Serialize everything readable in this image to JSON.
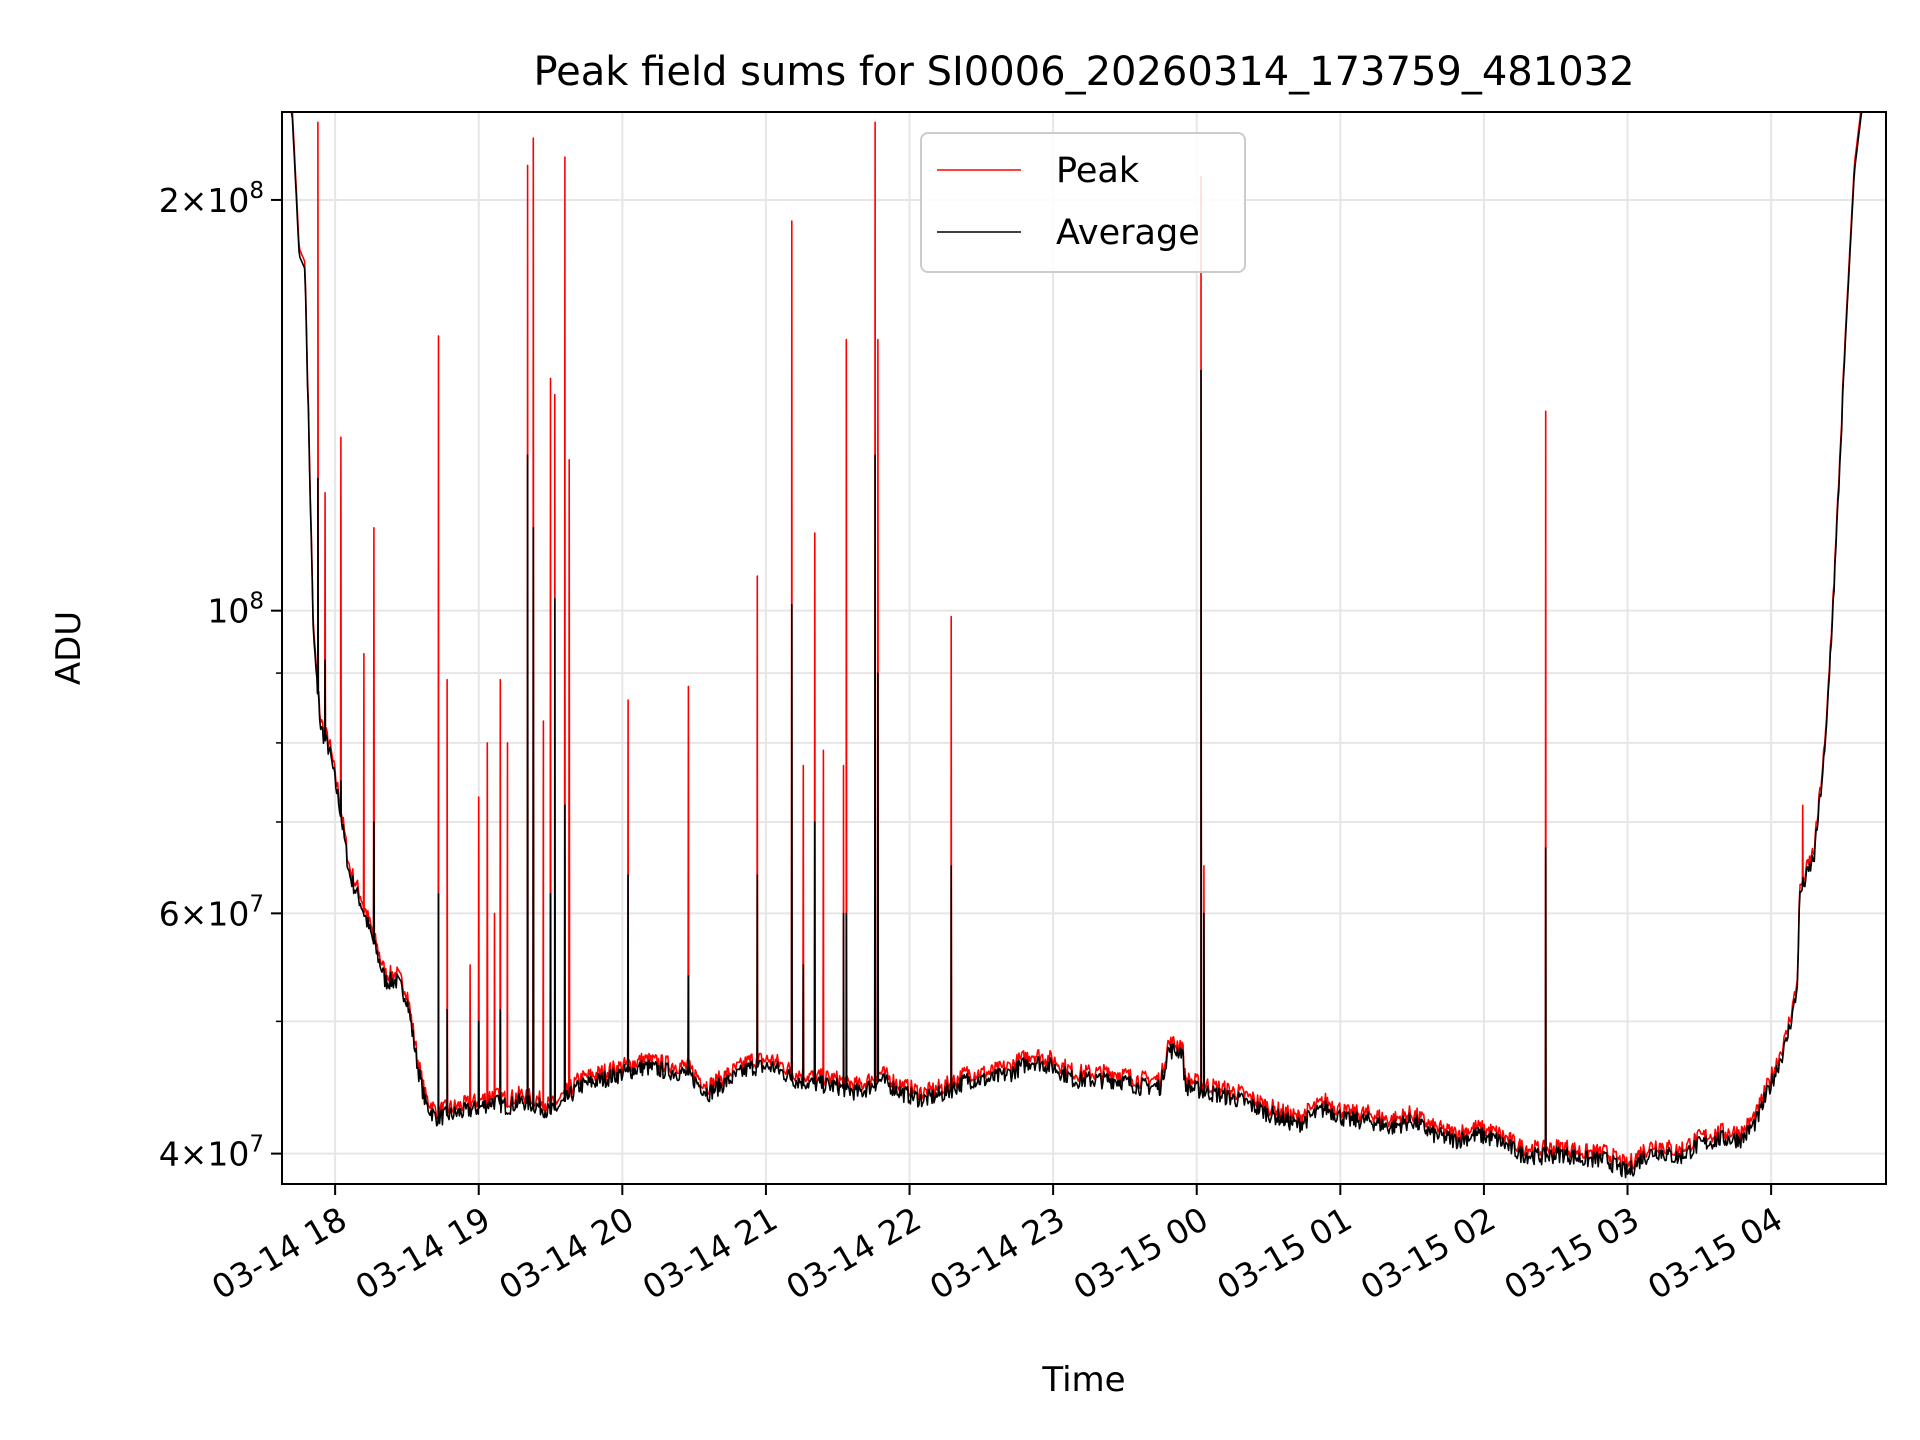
{
  "chart_data": {
    "type": "line",
    "title": "Peak field sums for SI0006_20260314_173759_481032",
    "xlabel": "Time",
    "ylabel": "ADU",
    "yscale": "log",
    "ylim": [
      38000000,
      232000000
    ],
    "xlim_hours": [
      17.63,
      4.8
    ],
    "grid": true,
    "legend_position": "upper-center",
    "x_ticks": [
      "03-14 18",
      "03-14 19",
      "03-14 20",
      "03-14 21",
      "03-14 22",
      "03-14 23",
      "03-15 00",
      "03-15 01",
      "03-15 02",
      "03-15 03",
      "03-15 04"
    ],
    "x_tick_hours": [
      18,
      19,
      20,
      21,
      22,
      23,
      24,
      25,
      26,
      27,
      28
    ],
    "y_major_ticks": [
      {
        "value": 40000000,
        "mantissa": "4",
        "exp": "7"
      },
      {
        "value": 60000000,
        "mantissa": "6",
        "exp": "7"
      },
      {
        "value": 100000000,
        "mantissa": "",
        "exp": "8"
      },
      {
        "value": 200000000,
        "mantissa": "2",
        "exp": "8"
      }
    ],
    "y_minor_ticks": [
      50000000,
      70000000,
      80000000,
      90000000
    ],
    "series": [
      {
        "name": "Peak",
        "color": "#ff0000"
      },
      {
        "name": "Average",
        "color": "#000000"
      }
    ],
    "baseline": [
      [
        17.63,
        232000000
      ],
      [
        17.7,
        232000000
      ],
      [
        17.75,
        182000000
      ],
      [
        17.79,
        178000000
      ],
      [
        17.85,
        95000000
      ],
      [
        17.9,
        82000000
      ],
      [
        17.96,
        79000000
      ],
      [
        18.03,
        72000000
      ],
      [
        18.1,
        64000000
      ],
      [
        18.18,
        61000000
      ],
      [
        18.27,
        57000000
      ],
      [
        18.35,
        53500000
      ],
      [
        18.43,
        53500000
      ],
      [
        18.5,
        52000000
      ],
      [
        18.58,
        46000000
      ],
      [
        18.63,
        43500000
      ],
      [
        18.7,
        42500000
      ],
      [
        18.85,
        42800000
      ],
      [
        19.0,
        43200000
      ],
      [
        19.1,
        43700000
      ],
      [
        19.2,
        43300000
      ],
      [
        19.3,
        43700000
      ],
      [
        19.45,
        43200000
      ],
      [
        19.5,
        42800000
      ],
      [
        19.6,
        43700000
      ],
      [
        19.7,
        44800000
      ],
      [
        19.85,
        45300000
      ],
      [
        20.0,
        45800000
      ],
      [
        20.15,
        46300000
      ],
      [
        20.3,
        46000000
      ],
      [
        20.45,
        45800000
      ],
      [
        20.6,
        44300000
      ],
      [
        20.75,
        45300000
      ],
      [
        20.9,
        46300000
      ],
      [
        21.05,
        46300000
      ],
      [
        21.2,
        45300000
      ],
      [
        21.35,
        45000000
      ],
      [
        21.5,
        44800000
      ],
      [
        21.65,
        44300000
      ],
      [
        21.8,
        45300000
      ],
      [
        21.95,
        44300000
      ],
      [
        22.1,
        43800000
      ],
      [
        22.25,
        44300000
      ],
      [
        22.4,
        45300000
      ],
      [
        22.55,
        45300000
      ],
      [
        22.7,
        45800000
      ],
      [
        22.85,
        46800000
      ],
      [
        23.0,
        46300000
      ],
      [
        23.15,
        45300000
      ],
      [
        23.3,
        45300000
      ],
      [
        23.45,
        45300000
      ],
      [
        23.6,
        44800000
      ],
      [
        23.75,
        44800000
      ],
      [
        23.8,
        47600000
      ],
      [
        23.9,
        47600000
      ],
      [
        23.92,
        44800000
      ],
      [
        24.1,
        44300000
      ],
      [
        24.3,
        43800000
      ],
      [
        24.5,
        42800000
      ],
      [
        24.7,
        42000000
      ],
      [
        24.9,
        43200000
      ],
      [
        25.05,
        42300000
      ],
      [
        25.2,
        42300000
      ],
      [
        25.35,
        41800000
      ],
      [
        25.5,
        42300000
      ],
      [
        25.65,
        41300000
      ],
      [
        25.8,
        40900000
      ],
      [
        25.95,
        41300000
      ],
      [
        26.1,
        40900000
      ],
      [
        26.25,
        40000000
      ],
      [
        26.4,
        39800000
      ],
      [
        26.55,
        40000000
      ],
      [
        26.7,
        39600000
      ],
      [
        26.85,
        39600000
      ],
      [
        27.0,
        38700000
      ],
      [
        27.1,
        39700000
      ],
      [
        27.2,
        40200000
      ],
      [
        27.35,
        39700000
      ],
      [
        27.5,
        40600000
      ],
      [
        27.65,
        41000000
      ],
      [
        27.8,
        41000000
      ],
      [
        27.9,
        42300000
      ],
      [
        28.0,
        45000000
      ],
      [
        28.1,
        48000000
      ],
      [
        28.18,
        52500000
      ],
      [
        28.2,
        62000000
      ],
      [
        28.3,
        66000000
      ],
      [
        28.38,
        80000000
      ],
      [
        28.45,
        110000000
      ],
      [
        28.52,
        160000000
      ],
      [
        28.58,
        210000000
      ],
      [
        28.63,
        232000000
      ],
      [
        28.8,
        232000000
      ]
    ],
    "peak_spikes": [
      [
        17.88,
        228000000
      ],
      [
        17.93,
        122000000
      ],
      [
        18.04,
        134000000
      ],
      [
        18.2,
        93000000
      ],
      [
        18.27,
        115000000
      ],
      [
        18.72,
        159000000
      ],
      [
        18.78,
        89000000
      ],
      [
        18.94,
        55000000
      ],
      [
        19.0,
        73000000
      ],
      [
        19.06,
        80000000
      ],
      [
        19.11,
        60000000
      ],
      [
        19.15,
        89000000
      ],
      [
        19.2,
        80000000
      ],
      [
        19.34,
        212000000
      ],
      [
        19.38,
        222000000
      ],
      [
        19.45,
        83000000
      ],
      [
        19.5,
        148000000
      ],
      [
        19.53,
        144000000
      ],
      [
        19.6,
        215000000
      ],
      [
        19.63,
        129000000
      ],
      [
        20.04,
        86000000
      ],
      [
        20.46,
        88000000
      ],
      [
        20.94,
        106000000
      ],
      [
        21.18,
        193000000
      ],
      [
        21.26,
        77000000
      ],
      [
        21.34,
        114000000
      ],
      [
        21.4,
        79000000
      ],
      [
        21.54,
        77000000
      ],
      [
        21.56,
        158000000
      ],
      [
        21.76,
        228000000
      ],
      [
        21.78,
        158000000
      ],
      [
        22.29,
        99000000
      ],
      [
        24.03,
        208000000
      ],
      [
        24.05,
        65000000
      ],
      [
        26.43,
        140000000
      ],
      [
        28.22,
        72000000
      ]
    ],
    "avg_spikes": [
      [
        17.88,
        125000000
      ],
      [
        17.93,
        92000000
      ],
      [
        18.04,
        75000000
      ],
      [
        18.27,
        70000000
      ],
      [
        18.72,
        62000000
      ],
      [
        18.78,
        51000000
      ],
      [
        19.0,
        50000000
      ],
      [
        19.15,
        51000000
      ],
      [
        19.34,
        130000000
      ],
      [
        19.38,
        115000000
      ],
      [
        19.5,
        62000000
      ],
      [
        19.53,
        102000000
      ],
      [
        19.6,
        72000000
      ],
      [
        20.04,
        64000000
      ],
      [
        20.46,
        54000000
      ],
      [
        20.94,
        64000000
      ],
      [
        21.18,
        101000000
      ],
      [
        21.26,
        55000000
      ],
      [
        21.34,
        70000000
      ],
      [
        21.54,
        60000000
      ],
      [
        21.56,
        60000000
      ],
      [
        21.76,
        130000000
      ],
      [
        21.78,
        90000000
      ],
      [
        22.29,
        65000000
      ],
      [
        24.03,
        150000000
      ],
      [
        24.05,
        60000000
      ],
      [
        26.43,
        67000000
      ]
    ]
  }
}
